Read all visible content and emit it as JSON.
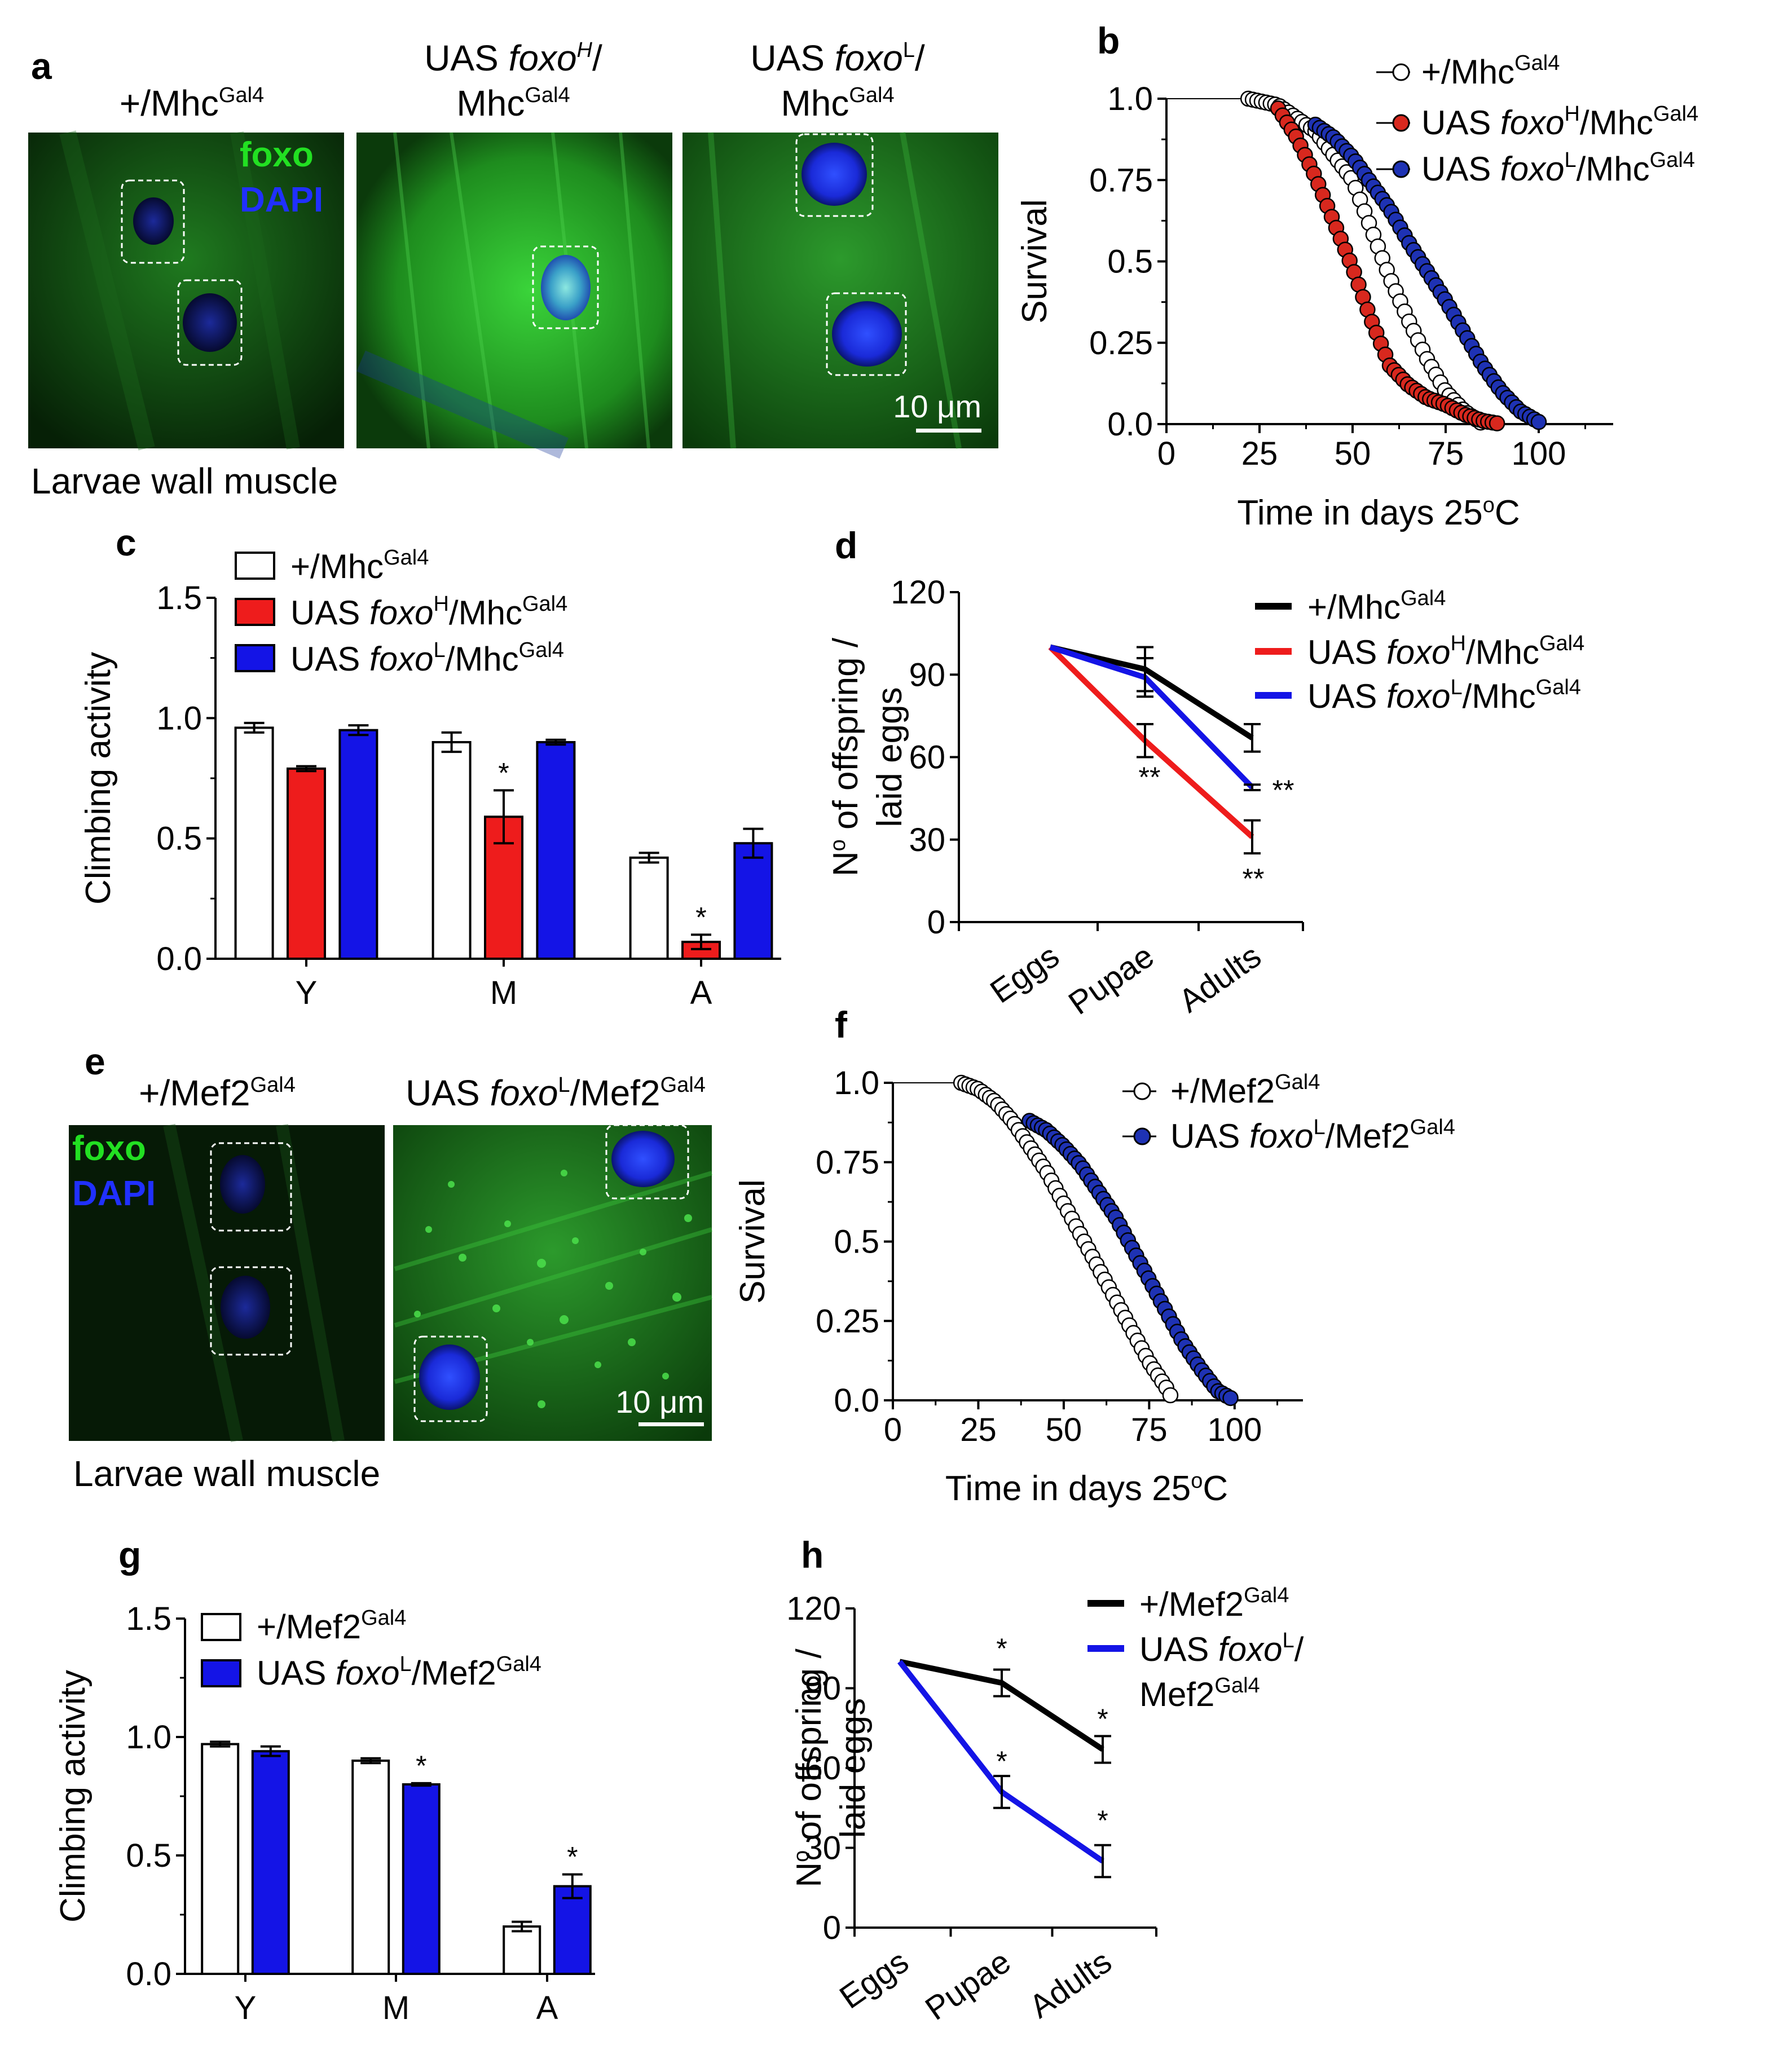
{
  "panels": {
    "a": {
      "letter": "a",
      "image_labels": {
        "wt": {
          "pre": "+/Mhc",
          "sup": "Gal4"
        },
        "foxoH": {
          "line1_pre": "UAS ",
          "line1_it": "foxo",
          "line1_sup": "H",
          "line1_post": "/",
          "line2_pre": "Mhc",
          "line2_sup": "Gal4"
        },
        "foxoL": {
          "line1_pre": "UAS ",
          "line1_it": "foxo",
          "line1_sup": "L",
          "line1_post": "/",
          "line2_pre": "Mhc",
          "line2_sup": "Gal4"
        }
      },
      "stain_foxo": "foxo",
      "stain_dapi": "DAPI",
      "scale_bar": "10 μm",
      "caption": "Larvae wall muscle"
    },
    "e": {
      "letter": "e",
      "image_labels": {
        "wt": {
          "pre": "+/Mef2",
          "sup": "Gal4"
        },
        "foxoL": {
          "pre": "UAS ",
          "it": "foxo",
          "sup1": "L",
          "mid": "/Mef2",
          "sup2": "Gal4"
        }
      },
      "stain_foxo": "foxo",
      "stain_dapi": "DAPI",
      "scale_bar": "10 μm",
      "caption": "Larvae wall muscle"
    },
    "b_letter": "b",
    "c_letter": "c",
    "d_letter": "d",
    "f_letter": "f",
    "g_letter": "g",
    "h_letter": "h"
  },
  "legend": {
    "mhc_wt": {
      "pre": "+/Mhc",
      "sup": "Gal4"
    },
    "mhc_h": {
      "pre": "UAS ",
      "it": "foxo",
      "sup1": "H",
      "mid": "/Mhc",
      "sup2": "Gal4"
    },
    "mhc_l": {
      "pre": "UAS ",
      "it": "foxo",
      "sup1": "L",
      "mid": "/Mhc",
      "sup2": "Gal4"
    },
    "mef2_wt": {
      "pre": "+/Mef2",
      "sup": "Gal4"
    },
    "mef2_l": {
      "pre": "UAS ",
      "it": "foxo",
      "sup1": "L",
      "mid": "/Mef2",
      "sup2": "Gal4"
    },
    "mef2_l_line1": {
      "pre": "UAS ",
      "it": "foxo",
      "sup1": "L",
      "post": "/"
    },
    "mef2_l_line2": {
      "pre": "Mef2",
      "sup": "Gal4"
    }
  },
  "axis_text": {
    "survival": "Survival",
    "time_pre": "Time in days 25",
    "time_sup": "o",
    "time_post": "C",
    "climbing": "Climbing activity",
    "offspring_l1_pre": "N",
    "offspring_l1_sup": "o",
    "offspring_l1_post": " of offspring /",
    "offspring_l2": "laid eggs"
  },
  "colors": {
    "wt_fill": "#ffffff",
    "foxoH": "#ee1c1c",
    "foxoL": "#1414e6",
    "black": "#000000",
    "survival_red_fill": "#d8281e",
    "survival_blue_fill": "#1e32b4"
  },
  "chart_data": [
    {
      "id": "b",
      "type": "scatter",
      "title": "",
      "xlabel": "Time in days 25oC",
      "ylabel": "Survival",
      "xlim": [
        0,
        120
      ],
      "ylim": [
        0,
        1.0
      ],
      "xticks": [
        "0",
        "25",
        "50",
        "75",
        "100"
      ],
      "yticks": [
        "0.0",
        "0.25",
        "0.5",
        "0.75",
        "1.0"
      ],
      "series": [
        {
          "name": "+/MhcGal4",
          "style": "open",
          "start": 22,
          "end": 85,
          "points": [
            [
              0,
              1
            ],
            [
              22,
              1
            ],
            [
              30,
              0.98
            ],
            [
              40,
              0.9
            ],
            [
              50,
              0.75
            ],
            [
              55,
              0.6
            ],
            [
              60,
              0.45
            ],
            [
              65,
              0.32
            ],
            [
              70,
              0.2
            ],
            [
              75,
              0.1
            ],
            [
              80,
              0.04
            ],
            [
              85,
              0
            ]
          ]
        },
        {
          "name": "UAS foxoH/MhcGal4",
          "style": "red",
          "start": 30,
          "end": 90,
          "points": [
            [
              30,
              0.97
            ],
            [
              35,
              0.88
            ],
            [
              40,
              0.76
            ],
            [
              45,
              0.62
            ],
            [
              50,
              0.48
            ],
            [
              55,
              0.32
            ],
            [
              60,
              0.18
            ],
            [
              65,
              0.12
            ],
            [
              70,
              0.08
            ],
            [
              75,
              0.06
            ],
            [
              80,
              0.03
            ],
            [
              85,
              0.01
            ],
            [
              90,
              0
            ]
          ]
        },
        {
          "name": "UAS foxoL/MhcGal4",
          "style": "blue",
          "start": 40,
          "end": 101,
          "points": [
            [
              40,
              0.92
            ],
            [
              45,
              0.88
            ],
            [
              50,
              0.82
            ],
            [
              55,
              0.74
            ],
            [
              60,
              0.66
            ],
            [
              65,
              0.56
            ],
            [
              70,
              0.47
            ],
            [
              75,
              0.38
            ],
            [
              80,
              0.28
            ],
            [
              85,
              0.18
            ],
            [
              90,
              0.1
            ],
            [
              95,
              0.04
            ],
            [
              101,
              0
            ]
          ]
        }
      ]
    },
    {
      "id": "c",
      "type": "bar",
      "title": "",
      "xlabel": "",
      "ylabel": "Climbing activity",
      "categories": [
        "Y",
        "M",
        "A"
      ],
      "ylim": [
        0,
        1.5
      ],
      "yticks": [
        "0.0",
        "0.5",
        "1.0",
        "1.5"
      ],
      "series": [
        {
          "name": "+/MhcGal4",
          "values": [
            0.96,
            0.9,
            0.42
          ],
          "errors": [
            0.02,
            0.04,
            0.02
          ]
        },
        {
          "name": "UAS foxoH/MhcGal4",
          "values": [
            0.79,
            0.59,
            0.07
          ],
          "errors": [
            0.01,
            0.11,
            0.03
          ]
        },
        {
          "name": "UAS foxoL/MhcGal4",
          "values": [
            0.95,
            0.9,
            0.48
          ],
          "errors": [
            0.02,
            0.01,
            0.06
          ]
        }
      ],
      "annotations": [
        {
          "series": 1,
          "category": 1,
          "text": "*"
        },
        {
          "series": 1,
          "category": 2,
          "text": "*"
        }
      ]
    },
    {
      "id": "d",
      "type": "line",
      "title": "",
      "xlabel": "",
      "ylabel": "No of offspring / laid eggs",
      "categories": [
        "Eggs",
        "Pupae",
        "Adults"
      ],
      "ylim": [
        0,
        120
      ],
      "yticks": [
        "0",
        "30",
        "60",
        "90",
        "120"
      ],
      "series": [
        {
          "name": "+/MhcGal4",
          "values": [
            100,
            92,
            67
          ],
          "errors": [
            0,
            8,
            5
          ]
        },
        {
          "name": "UAS foxoH/MhcGal4",
          "values": [
            100,
            66,
            31
          ],
          "errors": [
            0,
            6,
            6
          ]
        },
        {
          "name": "UAS foxoL/MhcGal4",
          "values": [
            100,
            89,
            49
          ],
          "errors": [
            0,
            7,
            1
          ]
        }
      ],
      "annotations": [
        {
          "series": 1,
          "category": 1,
          "text": "**"
        },
        {
          "series": 1,
          "category": 2,
          "text": "**"
        },
        {
          "series": 2,
          "category": 2,
          "text": "**"
        }
      ]
    },
    {
      "id": "f",
      "type": "scatter",
      "title": "",
      "xlabel": "Time in days 25oC",
      "ylabel": "Survival",
      "xlim": [
        0,
        120
      ],
      "ylim": [
        0,
        1.0
      ],
      "xticks": [
        "0",
        "25",
        "50",
        "75",
        "100"
      ],
      "yticks": [
        "0.0",
        "0.25",
        "0.5",
        "0.75",
        "1.0"
      ],
      "series": [
        {
          "name": "+/Mef2Gal4",
          "style": "open",
          "start": 20,
          "end": 82,
          "points": [
            [
              0,
              1
            ],
            [
              20,
              1
            ],
            [
              25,
              0.98
            ],
            [
              30,
              0.94
            ],
            [
              35,
              0.88
            ],
            [
              40,
              0.8
            ],
            [
              45,
              0.72
            ],
            [
              50,
              0.62
            ],
            [
              55,
              0.52
            ],
            [
              60,
              0.42
            ],
            [
              65,
              0.32
            ],
            [
              70,
              0.22
            ],
            [
              75,
              0.12
            ],
            [
              80,
              0.04
            ],
            [
              82,
              0
            ]
          ]
        },
        {
          "name": "UAS foxoL/Mef2Gal4",
          "style": "blue",
          "start": 40,
          "end": 100,
          "points": [
            [
              40,
              0.88
            ],
            [
              45,
              0.85
            ],
            [
              50,
              0.8
            ],
            [
              55,
              0.74
            ],
            [
              60,
              0.66
            ],
            [
              65,
              0.58
            ],
            [
              70,
              0.48
            ],
            [
              75,
              0.38
            ],
            [
              80,
              0.28
            ],
            [
              85,
              0.18
            ],
            [
              90,
              0.1
            ],
            [
              95,
              0.03
            ],
            [
              100,
              0
            ]
          ]
        }
      ]
    },
    {
      "id": "g",
      "type": "bar",
      "title": "",
      "xlabel": "",
      "ylabel": "Climbing activity",
      "categories": [
        "Y",
        "M",
        "A"
      ],
      "ylim": [
        0,
        1.5
      ],
      "yticks": [
        "0.0",
        "0.5",
        "1.0",
        "1.5"
      ],
      "series": [
        {
          "name": "+/Mef2Gal4",
          "values": [
            0.97,
            0.9,
            0.2
          ],
          "errors": [
            0.01,
            0.01,
            0.02
          ]
        },
        {
          "name": "UAS foxoL/Mef2Gal4",
          "values": [
            0.94,
            0.8,
            0.37
          ],
          "errors": [
            0.02,
            0.005,
            0.05
          ]
        }
      ],
      "annotations": [
        {
          "series": 1,
          "category": 1,
          "text": "*"
        },
        {
          "series": 1,
          "category": 2,
          "text": "*"
        }
      ]
    },
    {
      "id": "h",
      "type": "line",
      "title": "",
      "xlabel": "",
      "ylabel": "No of offspring / laid eggs",
      "categories": [
        "Eggs",
        "Pupae",
        "Adults"
      ],
      "ylim": [
        0,
        120
      ],
      "yticks": [
        "0",
        "30",
        "60",
        "90",
        "120"
      ],
      "series": [
        {
          "name": "+/Mef2Gal4",
          "values": [
            100,
            92,
            67
          ],
          "errors": [
            0,
            5,
            5
          ]
        },
        {
          "name": "UAS foxoL/Mef2Gal4",
          "values": [
            100,
            51,
            25
          ],
          "errors": [
            0,
            6,
            6
          ]
        }
      ],
      "annotations": [
        {
          "series": 0,
          "category": 1,
          "text": "*"
        },
        {
          "series": 0,
          "category": 2,
          "text": "*"
        },
        {
          "series": 1,
          "category": 1,
          "text": "*"
        },
        {
          "series": 1,
          "category": 2,
          "text": "*"
        }
      ]
    }
  ]
}
